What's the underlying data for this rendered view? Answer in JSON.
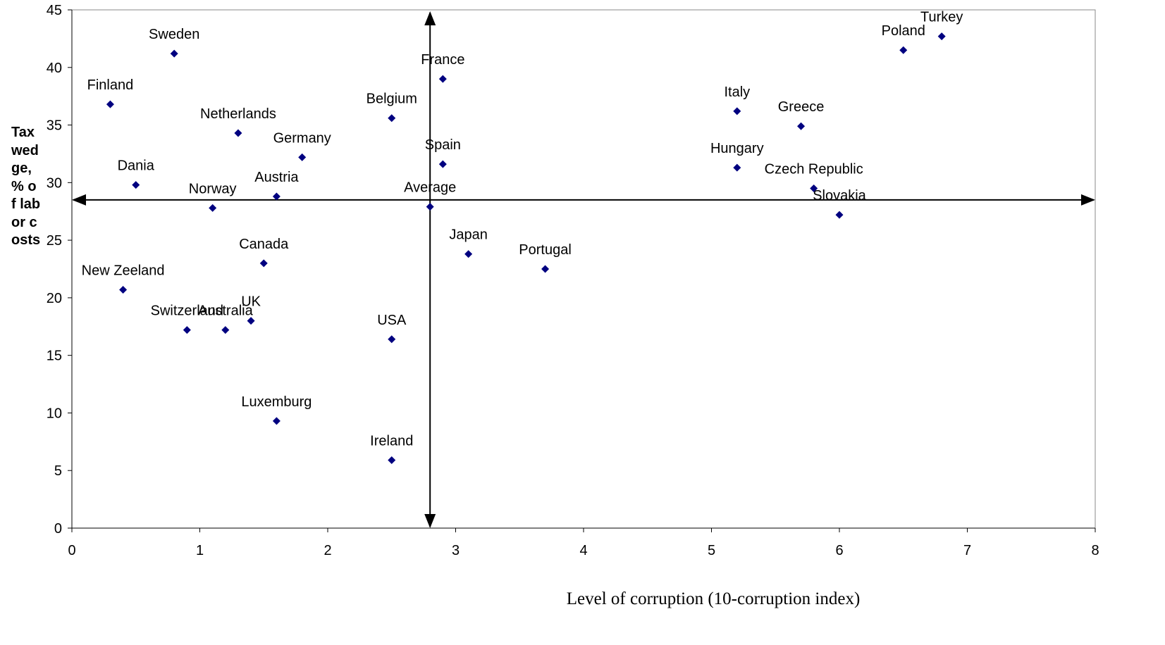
{
  "chart_data": {
    "type": "scatter",
    "x_label": "Level of corruption (10-corruption index)",
    "y_label": "Tax wedge, % of labor costs",
    "labels": [
      "Finland",
      "Sweden",
      "Dania",
      "Norway",
      "Netherlands",
      "Germany",
      "Austria",
      "Canada",
      "New Zeeland",
      "Switzerland",
      "Australia",
      "UK",
      "Luxemburg",
      "USA",
      "Ireland",
      "Belgium",
      "France",
      "Spain",
      "Average",
      "Japan",
      "Portugal",
      "Italy",
      "Hungary",
      "Greece",
      "Czech Republic",
      "Slovakia",
      "Poland",
      "Turkey"
    ],
    "x": [
      0.3,
      0.8,
      0.5,
      1.1,
      1.3,
      1.8,
      1.6,
      1.5,
      0.4,
      0.9,
      1.2,
      1.4,
      1.6,
      2.5,
      2.5,
      2.5,
      2.9,
      2.9,
      2.8,
      3.1,
      3.7,
      5.2,
      5.2,
      5.7,
      5.8,
      6.0,
      6.5,
      6.8
    ],
    "values": [
      36.8,
      41.2,
      29.8,
      27.8,
      34.3,
      32.2,
      28.8,
      23.0,
      20.7,
      17.2,
      17.2,
      18.0,
      9.3,
      16.4,
      5.9,
      35.6,
      39.0,
      31.6,
      27.9,
      23.8,
      22.5,
      36.2,
      31.3,
      34.9,
      29.5,
      27.2,
      41.5,
      42.7
    ],
    "color": "#000080",
    "reference_lines": {
      "x": 2.8,
      "y": 28.5
    },
    "xlim": [
      0,
      8
    ],
    "xticks": [
      0,
      1,
      2,
      3,
      4,
      5,
      6,
      7,
      8
    ],
    "ylim": [
      0,
      45
    ],
    "yticks": [
      0,
      5,
      10,
      15,
      20,
      25,
      30,
      35,
      40,
      45
    ]
  }
}
